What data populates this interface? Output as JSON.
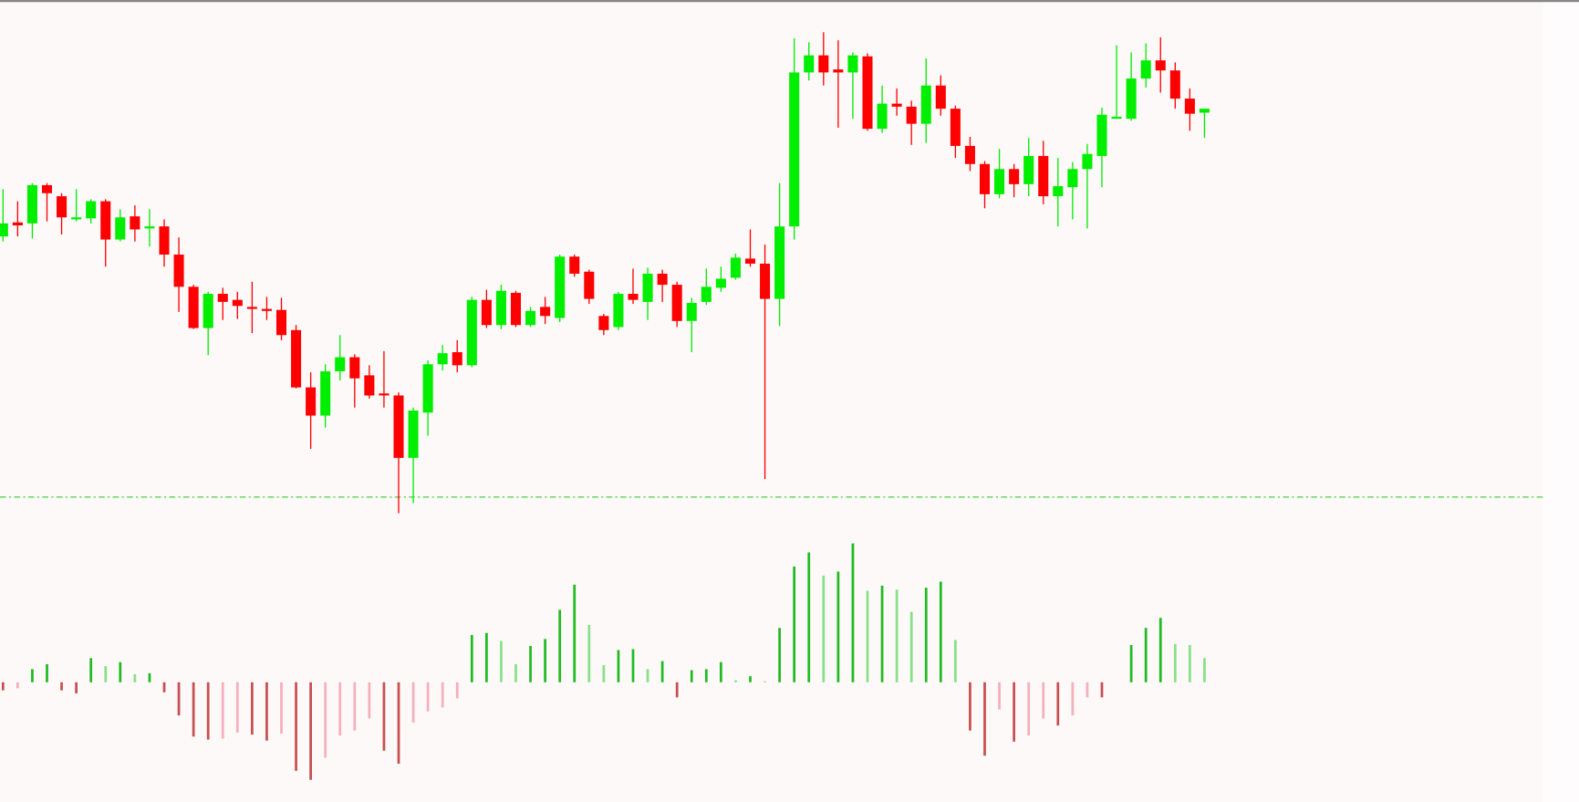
{
  "chart_data": [
    {
      "type": "candlestick",
      "up_color": "#00ee00",
      "down_color": "#ff0000",
      "ylim": [
        90,
        600
      ],
      "hline": 106,
      "hline_color": "#33cc33",
      "open": [
        365,
        379,
        378,
        416,
        405,
        382,
        383,
        400,
        362,
        385,
        373,
        375,
        347,
        315,
        274,
        308,
        302,
        295,
        293,
        292,
        272,
        215,
        187,
        231,
        245,
        227,
        209,
        207,
        145,
        190,
        238,
        250,
        237,
        302,
        277,
        309,
        277,
        295,
        284,
        345,
        330,
        286,
        275,
        308,
        300,
        328,
        317,
        281,
        300,
        314,
        324,
        343,
        338,
        303,
        375,
        528,
        545,
        531,
        528,
        544,
        472,
        497,
        494,
        477,
        515,
        492,
        455,
        437,
        407,
        432,
        417,
        445,
        405,
        414,
        432,
        445,
        483,
        482,
        522,
        540,
        530,
        502,
        488
      ],
      "high": [
        412,
        400,
        418,
        418,
        408,
        412,
        402,
        402,
        392,
        396,
        392,
        382,
        364,
        317,
        310,
        314,
        310,
        320,
        305,
        304,
        277,
        230,
        238,
        267,
        248,
        237,
        251,
        210,
        195,
        242,
        257,
        262,
        305,
        312,
        317,
        311,
        295,
        305,
        347,
        347,
        332,
        288,
        310,
        333,
        334,
        332,
        320,
        304,
        333,
        335,
        348,
        372,
        357,
        418,
        562,
        558,
        568,
        560,
        548,
        547,
        515,
        512,
        500,
        542,
        525,
        495,
        464,
        440,
        452,
        437,
        463,
        460,
        443,
        439,
        457,
        493,
        555,
        548,
        557,
        563,
        538,
        512,
        492
      ],
      "low": [
        360,
        365,
        363,
        380,
        367,
        380,
        378,
        335,
        360,
        360,
        355,
        335,
        290,
        273,
        247,
        282,
        283,
        269,
        282,
        262,
        214,
        154,
        175,
        222,
        195,
        204,
        195,
        90,
        100,
        167,
        232,
        230,
        235,
        274,
        273,
        275,
        275,
        278,
        280,
        325,
        298,
        267,
        272,
        298,
        282,
        300,
        275,
        250,
        297,
        310,
        322,
        335,
        124,
        276,
        362,
        520,
        515,
        473,
        482,
        470,
        468,
        485,
        456,
        458,
        485,
        443,
        430,
        393,
        403,
        404,
        405,
        397,
        375,
        382,
        373,
        414,
        482,
        480,
        513,
        508,
        492,
        470,
        463
      ],
      "close": [
        378,
        376,
        416,
        408,
        384,
        384,
        400,
        362,
        384,
        372,
        375,
        347,
        315,
        274,
        308,
        300,
        296,
        293,
        291,
        267,
        215,
        187,
        231,
        245,
        224,
        207,
        207,
        145,
        192,
        238,
        249,
        237,
        302,
        277,
        311,
        277,
        291,
        286,
        345,
        328,
        303,
        272,
        308,
        302,
        328,
        317,
        281,
        299,
        315,
        323,
        344,
        338,
        303,
        375,
        528,
        545,
        528,
        528,
        545,
        472,
        497,
        494,
        477,
        515,
        492,
        455,
        437,
        407,
        432,
        417,
        445,
        405,
        415,
        432,
        447,
        486,
        484,
        522,
        540,
        530,
        502,
        487,
        492
      ]
    },
    {
      "type": "bar",
      "ylim": [
        -112,
        148
      ],
      "colors": {
        "rising_positive": "#22bb22",
        "falling_positive": "#88e088",
        "falling_negative": "#c85050",
        "rising_negative": "#f4b0bb"
      },
      "values": [
        -8,
        -6,
        13,
        18,
        -8,
        -11,
        24,
        16,
        20,
        8,
        9,
        -10,
        -33,
        -54,
        -57,
        -56,
        -50,
        -52,
        -58,
        -51,
        -88,
        -97,
        -75,
        -53,
        -48,
        -36,
        -68,
        -81,
        -40,
        -29,
        -25,
        -16,
        47,
        49,
        41,
        18,
        36,
        43,
        72,
        97,
        57,
        17,
        32,
        33,
        13,
        21,
        -15,
        12,
        13,
        20,
        2,
        6,
        1,
        54,
        115,
        129,
        106,
        110,
        138,
        91,
        96,
        92,
        70,
        94,
        100,
        42,
        -48,
        -73,
        -27,
        -59,
        -53,
        -36,
        -43,
        -33,
        -15,
        -15,
        0,
        37,
        54,
        64,
        38,
        37,
        24
      ]
    }
  ]
}
